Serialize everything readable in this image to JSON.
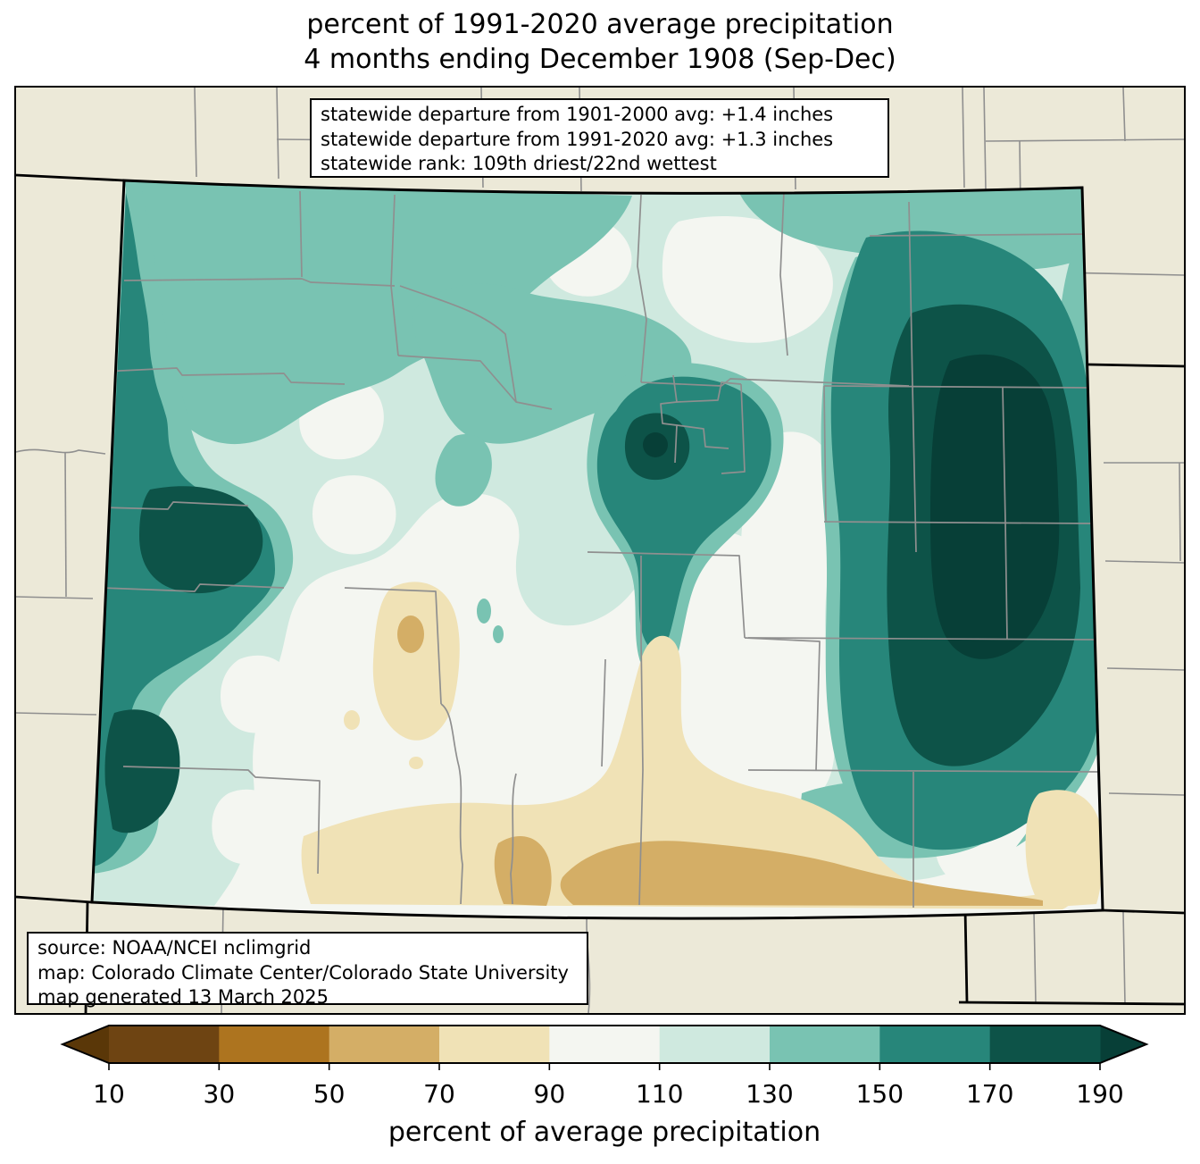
{
  "title": {
    "line1": "percent of 1991-2020 average precipitation",
    "line2": "4 months ending December 1908 (Sep-Dec)"
  },
  "annotation_box": {
    "lines": [
      "statewide departure from 1901-2000 avg: +1.4 inches",
      "statewide departure from 1991-2020 avg: +1.3 inches",
      "statewide rank: 109th driest/22nd wettest"
    ]
  },
  "credit_box": {
    "lines": [
      "source: NOAA/NCEI nclimgrid",
      "map: Colorado Climate Center/Colorado State University",
      "map generated 13 March 2025"
    ]
  },
  "colorbar": {
    "label": "percent of average precipitation",
    "tick_labels": [
      "10",
      "30",
      "50",
      "70",
      "90",
      "110",
      "130",
      "150",
      "170",
      "190"
    ],
    "segments": [
      {
        "range": "10-30",
        "color": "#6e4412"
      },
      {
        "range": "30-50",
        "color": "#ad741f"
      },
      {
        "range": "50-70",
        "color": "#d4ae66"
      },
      {
        "range": "70-90",
        "color": "#f0e2b6"
      },
      {
        "range": "90-110",
        "color": "#f4f6f1"
      },
      {
        "range": "110-130",
        "color": "#cfe9df"
      },
      {
        "range": "130-150",
        "color": "#79c3b2"
      },
      {
        "range": "150-170",
        "color": "#27867a"
      },
      {
        "range": "170-190",
        "color": "#0d5348"
      }
    ],
    "extend_low_color": "#5a3708",
    "extend_high_color": "#073f37"
  },
  "map": {
    "region": "Colorado",
    "background_color": "#ece9d8",
    "frame_border_color": "#000000",
    "state_border_color": "#000000",
    "county_line_color": "#8f8f8f",
    "palette": {
      "lt10": "#5a3708",
      "p10_30": "#6e4412",
      "p30_50": "#ad741f",
      "p50_70": "#d4ae66",
      "p70_90": "#f0e2b6",
      "p90_110": "#f4f6f1",
      "p110_130": "#cfe9df",
      "p130_150": "#79c3b2",
      "p150_170": "#27867a",
      "p170_190": "#0d5348",
      "gt190": "#073f37"
    }
  }
}
